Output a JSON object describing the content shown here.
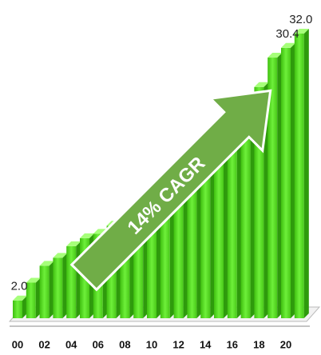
{
  "chart_data": {
    "type": "bar3d",
    "categories": [
      "00",
      null,
      "02",
      null,
      "04",
      null,
      "06",
      null,
      "08",
      null,
      "10",
      null,
      "12",
      null,
      "14",
      null,
      "16",
      null,
      "18",
      null,
      "20",
      null
    ],
    "values": [
      2.0,
      4.0,
      5.9,
      6.8,
      8.1,
      9.0,
      9.5,
      10.4,
      11.3,
      12.3,
      13.2,
      14.3,
      15.4,
      16.6,
      17.8,
      19.0,
      20.5,
      22.5,
      26.0,
      29.3,
      30.4,
      32.0
    ],
    "value_labels": [
      "2.0",
      null,
      null,
      null,
      null,
      null,
      null,
      null,
      null,
      null,
      null,
      null,
      null,
      null,
      null,
      null,
      null,
      null,
      null,
      null,
      "30.4",
      "32.0"
    ],
    "color": "#5ee62a",
    "ylim": [
      0,
      32
    ],
    "annotation": "14% CAGR"
  }
}
